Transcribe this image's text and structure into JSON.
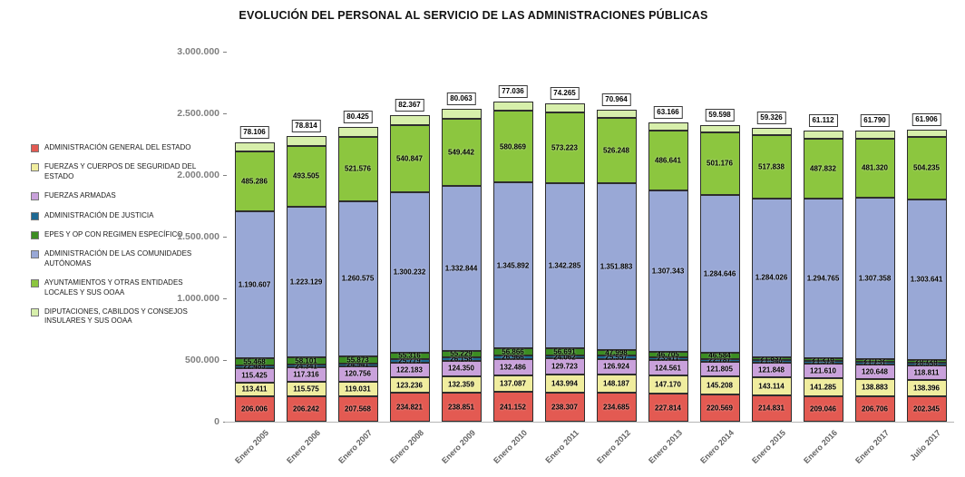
{
  "title": "EVOLUCIÓN DEL PERSONAL AL SERVICIO DE LAS ADMINISTRACIONES PÚBLICAS",
  "y_axis": {
    "tick_labels": [
      "0",
      "500.000",
      "1.000.000",
      "1.500.000",
      "2.000.000",
      "2.500.000",
      "3.000.000"
    ],
    "tick_values": [
      0,
      500000,
      1000000,
      1500000,
      2000000,
      2500000,
      3000000
    ]
  },
  "chart_data": {
    "type": "bar",
    "stacked": true,
    "grid": false,
    "legend_position": "left",
    "title": "EVOLUCIÓN DEL PERSONAL AL SERVICIO DE LAS ADMINISTRACIONES PÚBLICAS",
    "xlabel": "",
    "ylabel": "",
    "ylim": [
      0,
      3000000
    ],
    "categories": [
      "Enero 2005",
      "Enero 2006",
      "Enero 2007",
      "Enero 2008",
      "Enero 2009",
      "Enero 2010",
      "Enero 2011",
      "Enero 2012",
      "Enero 2013",
      "Enero 2014",
      "Enero 2015",
      "Enero 2016",
      "Enero 2017",
      "Julio 2017"
    ],
    "series": [
      {
        "name": "ADMINISTRACIÓN GENERAL DEL ESTADO",
        "color": "#e35a52",
        "value_label": "inside",
        "values": [
          206006,
          206242,
          207568,
          234821,
          238851,
          241152,
          238307,
          234685,
          227814,
          220569,
          214831,
          209046,
          206706,
          202345
        ]
      },
      {
        "name": "FUERZAS Y CUERPOS DE SEGURIDAD DEL ESTADO",
        "color": "#f0ed9e",
        "value_label": "inside",
        "values": [
          113411,
          115575,
          119031,
          123236,
          132359,
          137087,
          143994,
          148187,
          147170,
          145208,
          143114,
          141285,
          138883,
          138396
        ]
      },
      {
        "name": "FUERZAS ARMADAS",
        "color": "#c9a1db",
        "value_label": "inside",
        "values": [
          115425,
          117316,
          120756,
          122183,
          124350,
          132486,
          129723,
          126924,
          124561,
          121805,
          121848,
          121610,
          120648,
          118811
        ]
      },
      {
        "name": "ADMINISTRACIÓN DE JUSTICIA",
        "color": "#1e6a94",
        "value_label": "inside",
        "values": [
          22489,
          24341,
          24941,
          25779,
          26158,
          26966,
          24062,
          25557,
          23411,
          22787,
          21940,
          21374,
          21251,
          20936
        ]
      },
      {
        "name": "EPES Y OP CON REGIMEN ESPECÍFICO",
        "color": "#3c8d22",
        "value_label": "inside",
        "values": [
          55468,
          58101,
          55873,
          55316,
          55229,
          56866,
          56691,
          47998,
          46705,
          46584,
          21837,
          21216,
          21132,
          20726
        ]
      },
      {
        "name": "ADMINISTRACIÓN DE LAS COMUNIDADES AUTÓNOMAS",
        "color": "#99a8d6",
        "value_label": "inside",
        "values": [
          1190607,
          1223129,
          1260575,
          1300232,
          1332844,
          1345892,
          1342285,
          1351883,
          1307343,
          1284646,
          1284026,
          1294765,
          1307358,
          1303641
        ]
      },
      {
        "name": "AYUNTAMIENTOS Y OTRAS ENTIDADES LOCALES Y SUS OOAA",
        "color": "#8cc63f",
        "value_label": "inside",
        "values": [
          485286,
          493505,
          521576,
          540847,
          549442,
          580869,
          573223,
          526248,
          486641,
          501176,
          517838,
          487832,
          481320,
          504235
        ]
      },
      {
        "name": "DIPUTACIONES, CABILDOS Y CONSEJOS INSULARES Y SUS OOAA",
        "color": "#d7efab",
        "value_label": "boxed-above",
        "values": [
          78106,
          78814,
          80425,
          82367,
          80063,
          77036,
          74265,
          70964,
          63166,
          59598,
          59326,
          61112,
          61790,
          61906
        ]
      }
    ]
  }
}
